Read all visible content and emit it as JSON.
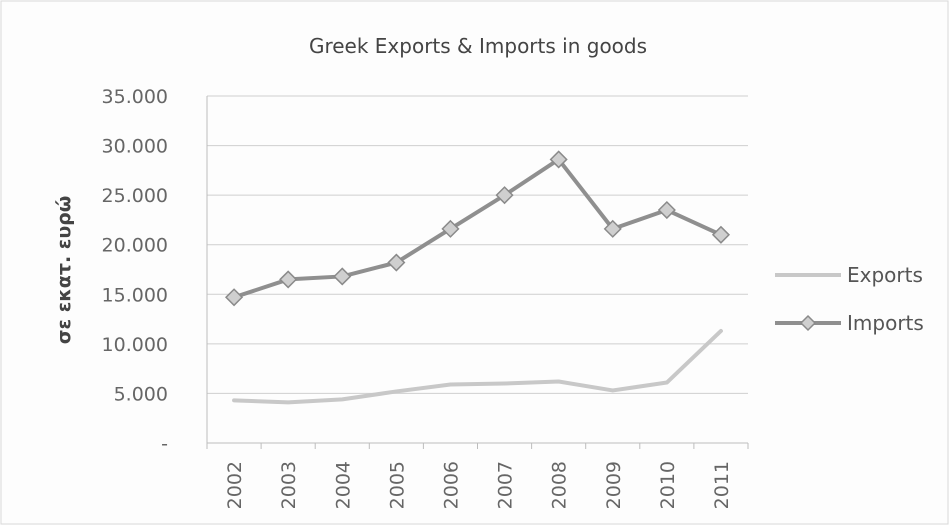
{
  "chart_data": {
    "type": "line",
    "title": "Greek Exports & Imports in goods",
    "xlabel": "",
    "ylabel": "σε εκατ. ευρώ",
    "categories": [
      "2002",
      "2003",
      "2004",
      "2005",
      "2006",
      "2007",
      "2008",
      "2009",
      "2010",
      "2011"
    ],
    "series": [
      {
        "name": "Exports",
        "color": "#c8c8c8",
        "marker": "none",
        "values": [
          4300,
          4100,
          4400,
          5200,
          5900,
          6000,
          6200,
          5300,
          6100,
          11300
        ]
      },
      {
        "name": "Imports",
        "color": "#8f8f8f",
        "marker": "diamond",
        "values": [
          14700,
          16500,
          16800,
          18200,
          21600,
          25000,
          28600,
          21600,
          23500,
          21000
        ]
      }
    ],
    "ylim": [
      0,
      35000
    ],
    "yticks": [
      35000,
      30000,
      25000,
      20000,
      15000,
      10000,
      5000,
      0
    ],
    "ytick_labels": [
      "35.000",
      "30.000",
      "25.000",
      "20.000",
      "15.000",
      "10.000",
      "5.000",
      "-"
    ],
    "grid": true,
    "legend_position": "right"
  }
}
